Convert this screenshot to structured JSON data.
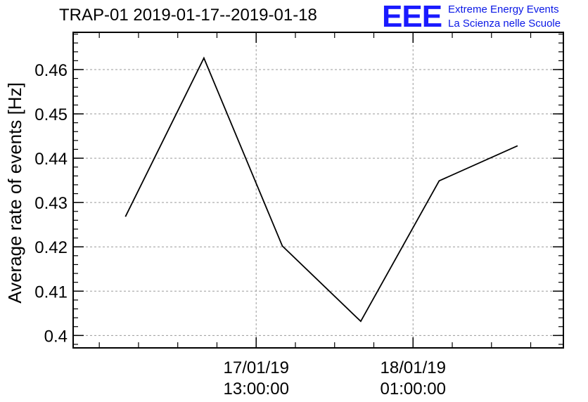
{
  "header": {
    "title": "TRAP-01 2019-01-17--2019-01-18",
    "logo_mark": "EEE",
    "logo_line1": "Extreme Energy Events",
    "logo_line2": "La Scienza nelle Scuole"
  },
  "colors": {
    "line": "#000000",
    "grid": "#9a9a9a",
    "logo": "#1a1aff"
  },
  "chart_data": {
    "type": "line",
    "title": "TRAP-01 2019-01-17--2019-01-18",
    "ylabel": "Average rate of events [Hz]",
    "xlabel": "",
    "x_unit": "hours since 2019-01-17 00:00",
    "x": [
      3,
      9,
      15,
      21,
      27,
      33
    ],
    "y": [
      0.4268,
      0.4626,
      0.4202,
      0.4032,
      0.4349,
      0.4428
    ],
    "xlim": [
      -1,
      36.5
    ],
    "ylim": [
      0.3972,
      0.4684
    ],
    "yticks": [
      0.4,
      0.41,
      0.42,
      0.43,
      0.44,
      0.45,
      0.46
    ],
    "ytick_labels": [
      "0.4",
      "0.41",
      "0.42",
      "0.43",
      "0.44",
      "0.45",
      "0.46"
    ],
    "xticks": [
      13,
      25
    ],
    "xtick_labels": [
      [
        "17/01/19",
        "13:00:00"
      ],
      [
        "18/01/19",
        "01:00:00"
      ]
    ],
    "x_minor_ticks": [
      1,
      4,
      7,
      10,
      16,
      19,
      22,
      28,
      31,
      34
    ],
    "grid": true,
    "legend": "none"
  }
}
